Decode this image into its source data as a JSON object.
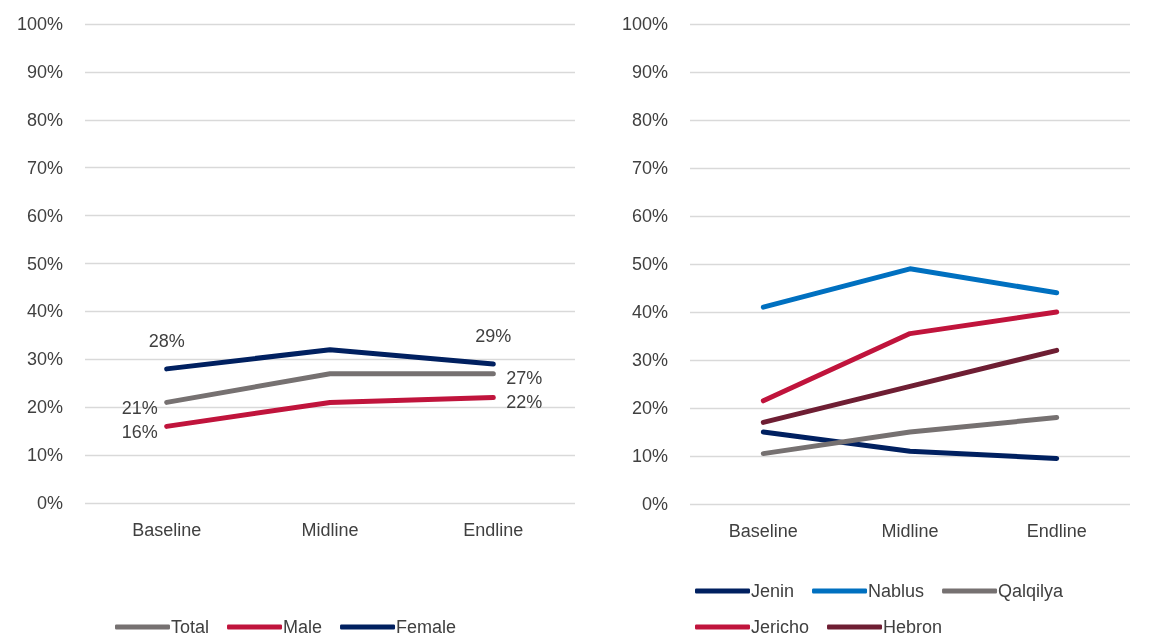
{
  "chart_data": [
    {
      "type": "line",
      "categories": [
        "Baseline",
        "Midline",
        "Endline"
      ],
      "ylim": [
        0,
        100
      ],
      "yticks": [
        {
          "value": 0,
          "label": "0%"
        },
        {
          "value": 10,
          "label": "10%"
        },
        {
          "value": 20,
          "label": "20%"
        },
        {
          "value": 30,
          "label": "30%"
        },
        {
          "value": 40,
          "label": "40%"
        },
        {
          "value": 50,
          "label": "50%"
        },
        {
          "value": 60,
          "label": "60%"
        },
        {
          "value": 70,
          "label": "70%"
        },
        {
          "value": 80,
          "label": "80%"
        },
        {
          "value": 90,
          "label": "90%"
        },
        {
          "value": 100,
          "label": "100%"
        }
      ],
      "grid": "y",
      "legend": "bottom",
      "marker": "none",
      "series": [
        {
          "name": "Total",
          "color": "#767171",
          "values": [
            21,
            27,
            27
          ],
          "value_labels": [
            "21%",
            null,
            "27%"
          ]
        },
        {
          "name": "Male",
          "color": "#c0143c",
          "values": [
            16,
            21,
            22
          ],
          "value_labels": [
            "16%",
            null,
            "22%"
          ]
        },
        {
          "name": "Female",
          "color": "#002060",
          "values": [
            28,
            32,
            29
          ],
          "value_labels": [
            "28%",
            null,
            "29%"
          ]
        }
      ]
    },
    {
      "type": "line",
      "categories": [
        "Baseline",
        "Midline",
        "Endline"
      ],
      "ylim": [
        0,
        100
      ],
      "yticks": [
        {
          "value": 0,
          "label": "0%"
        },
        {
          "value": 10,
          "label": "10%"
        },
        {
          "value": 20,
          "label": "20%"
        },
        {
          "value": 30,
          "label": "30%"
        },
        {
          "value": 40,
          "label": "40%"
        },
        {
          "value": 50,
          "label": "50%"
        },
        {
          "value": 60,
          "label": "60%"
        },
        {
          "value": 70,
          "label": "70%"
        },
        {
          "value": 80,
          "label": "80%"
        },
        {
          "value": 90,
          "label": "90%"
        },
        {
          "value": 100,
          "label": "100%"
        }
      ],
      "grid": "y",
      "legend": "bottom",
      "marker": "none",
      "series": [
        {
          "name": "Jenin",
          "color": "#002060",
          "values": [
            15,
            11,
            9.5
          ]
        },
        {
          "name": "Nablus",
          "color": "#0070c0",
          "values": [
            41,
            49,
            44
          ]
        },
        {
          "name": "Qalqilya",
          "color": "#767171",
          "values": [
            10.5,
            15,
            18
          ]
        },
        {
          "name": "Jericho",
          "color": "#c0143c",
          "values": [
            21.5,
            35.5,
            40
          ]
        },
        {
          "name": "Hebron",
          "color": "#6e1e33",
          "values": [
            17,
            24.5,
            32
          ]
        }
      ]
    }
  ]
}
